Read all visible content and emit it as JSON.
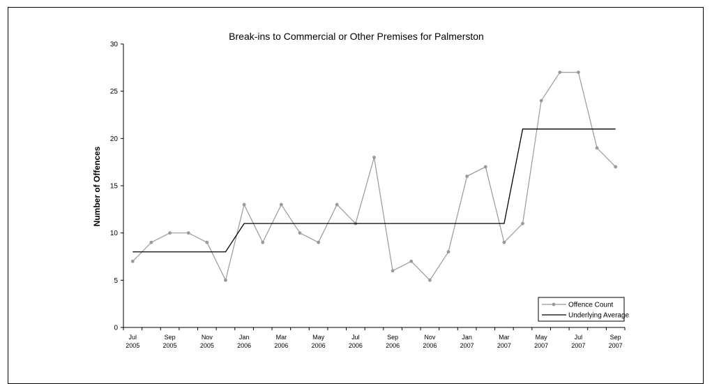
{
  "chart_data": {
    "type": "line",
    "title": "Break-ins to Commercial or Other Premises for Palmerston",
    "xlabel": "",
    "ylabel": "Number of Offences",
    "ylim": [
      0,
      30
    ],
    "yticks": [
      0,
      5,
      10,
      15,
      20,
      25,
      30
    ],
    "grid": false,
    "legend_position": "bottom-right",
    "x": [
      "Jul 2005",
      "Aug 2005",
      "Sep 2005",
      "Oct 2005",
      "Nov 2005",
      "Dec 2005",
      "Jan 2006",
      "Feb 2006",
      "Mar 2006",
      "Apr 2006",
      "May 2006",
      "Jun 2006",
      "Jul 2006",
      "Aug 2006",
      "Sep 2006",
      "Oct 2006",
      "Nov 2006",
      "Dec 2006",
      "Jan 2007",
      "Feb 2007",
      "Mar 2007",
      "Apr 2007",
      "May 2007",
      "Jun 2007",
      "Jul 2007",
      "Aug 2007",
      "Sep 2007"
    ],
    "tick_labels": [
      {
        "month": "Jul",
        "year": "2005"
      },
      {
        "month": "Sep",
        "year": "2005"
      },
      {
        "month": "Nov",
        "year": "2005"
      },
      {
        "month": "Jan",
        "year": "2006"
      },
      {
        "month": "Mar",
        "year": "2006"
      },
      {
        "month": "May",
        "year": "2006"
      },
      {
        "month": "Jul",
        "year": "2006"
      },
      {
        "month": "Sep",
        "year": "2006"
      },
      {
        "month": "Nov",
        "year": "2006"
      },
      {
        "month": "Jan",
        "year": "2007"
      },
      {
        "month": "Mar",
        "year": "2007"
      },
      {
        "month": "May",
        "year": "2007"
      },
      {
        "month": "Jul",
        "year": "2007"
      },
      {
        "month": "Sep",
        "year": "2007"
      }
    ],
    "series": [
      {
        "name": "Offence Count",
        "color": "#999999",
        "marker": "circle",
        "values": [
          7,
          9,
          10,
          10,
          9,
          5,
          13,
          9,
          13,
          10,
          9,
          13,
          11,
          18,
          6,
          7,
          5,
          8,
          16,
          17,
          9,
          11,
          24,
          27,
          27,
          19,
          17
        ]
      },
      {
        "name": "Underlying Average",
        "color": "#000000",
        "marker": "none",
        "values": [
          8,
          8,
          8,
          8,
          8,
          8,
          11,
          11,
          11,
          11,
          11,
          11,
          11,
          11,
          11,
          11,
          11,
          11,
          11,
          11,
          11,
          21,
          21,
          21,
          21,
          21,
          21
        ]
      }
    ]
  }
}
